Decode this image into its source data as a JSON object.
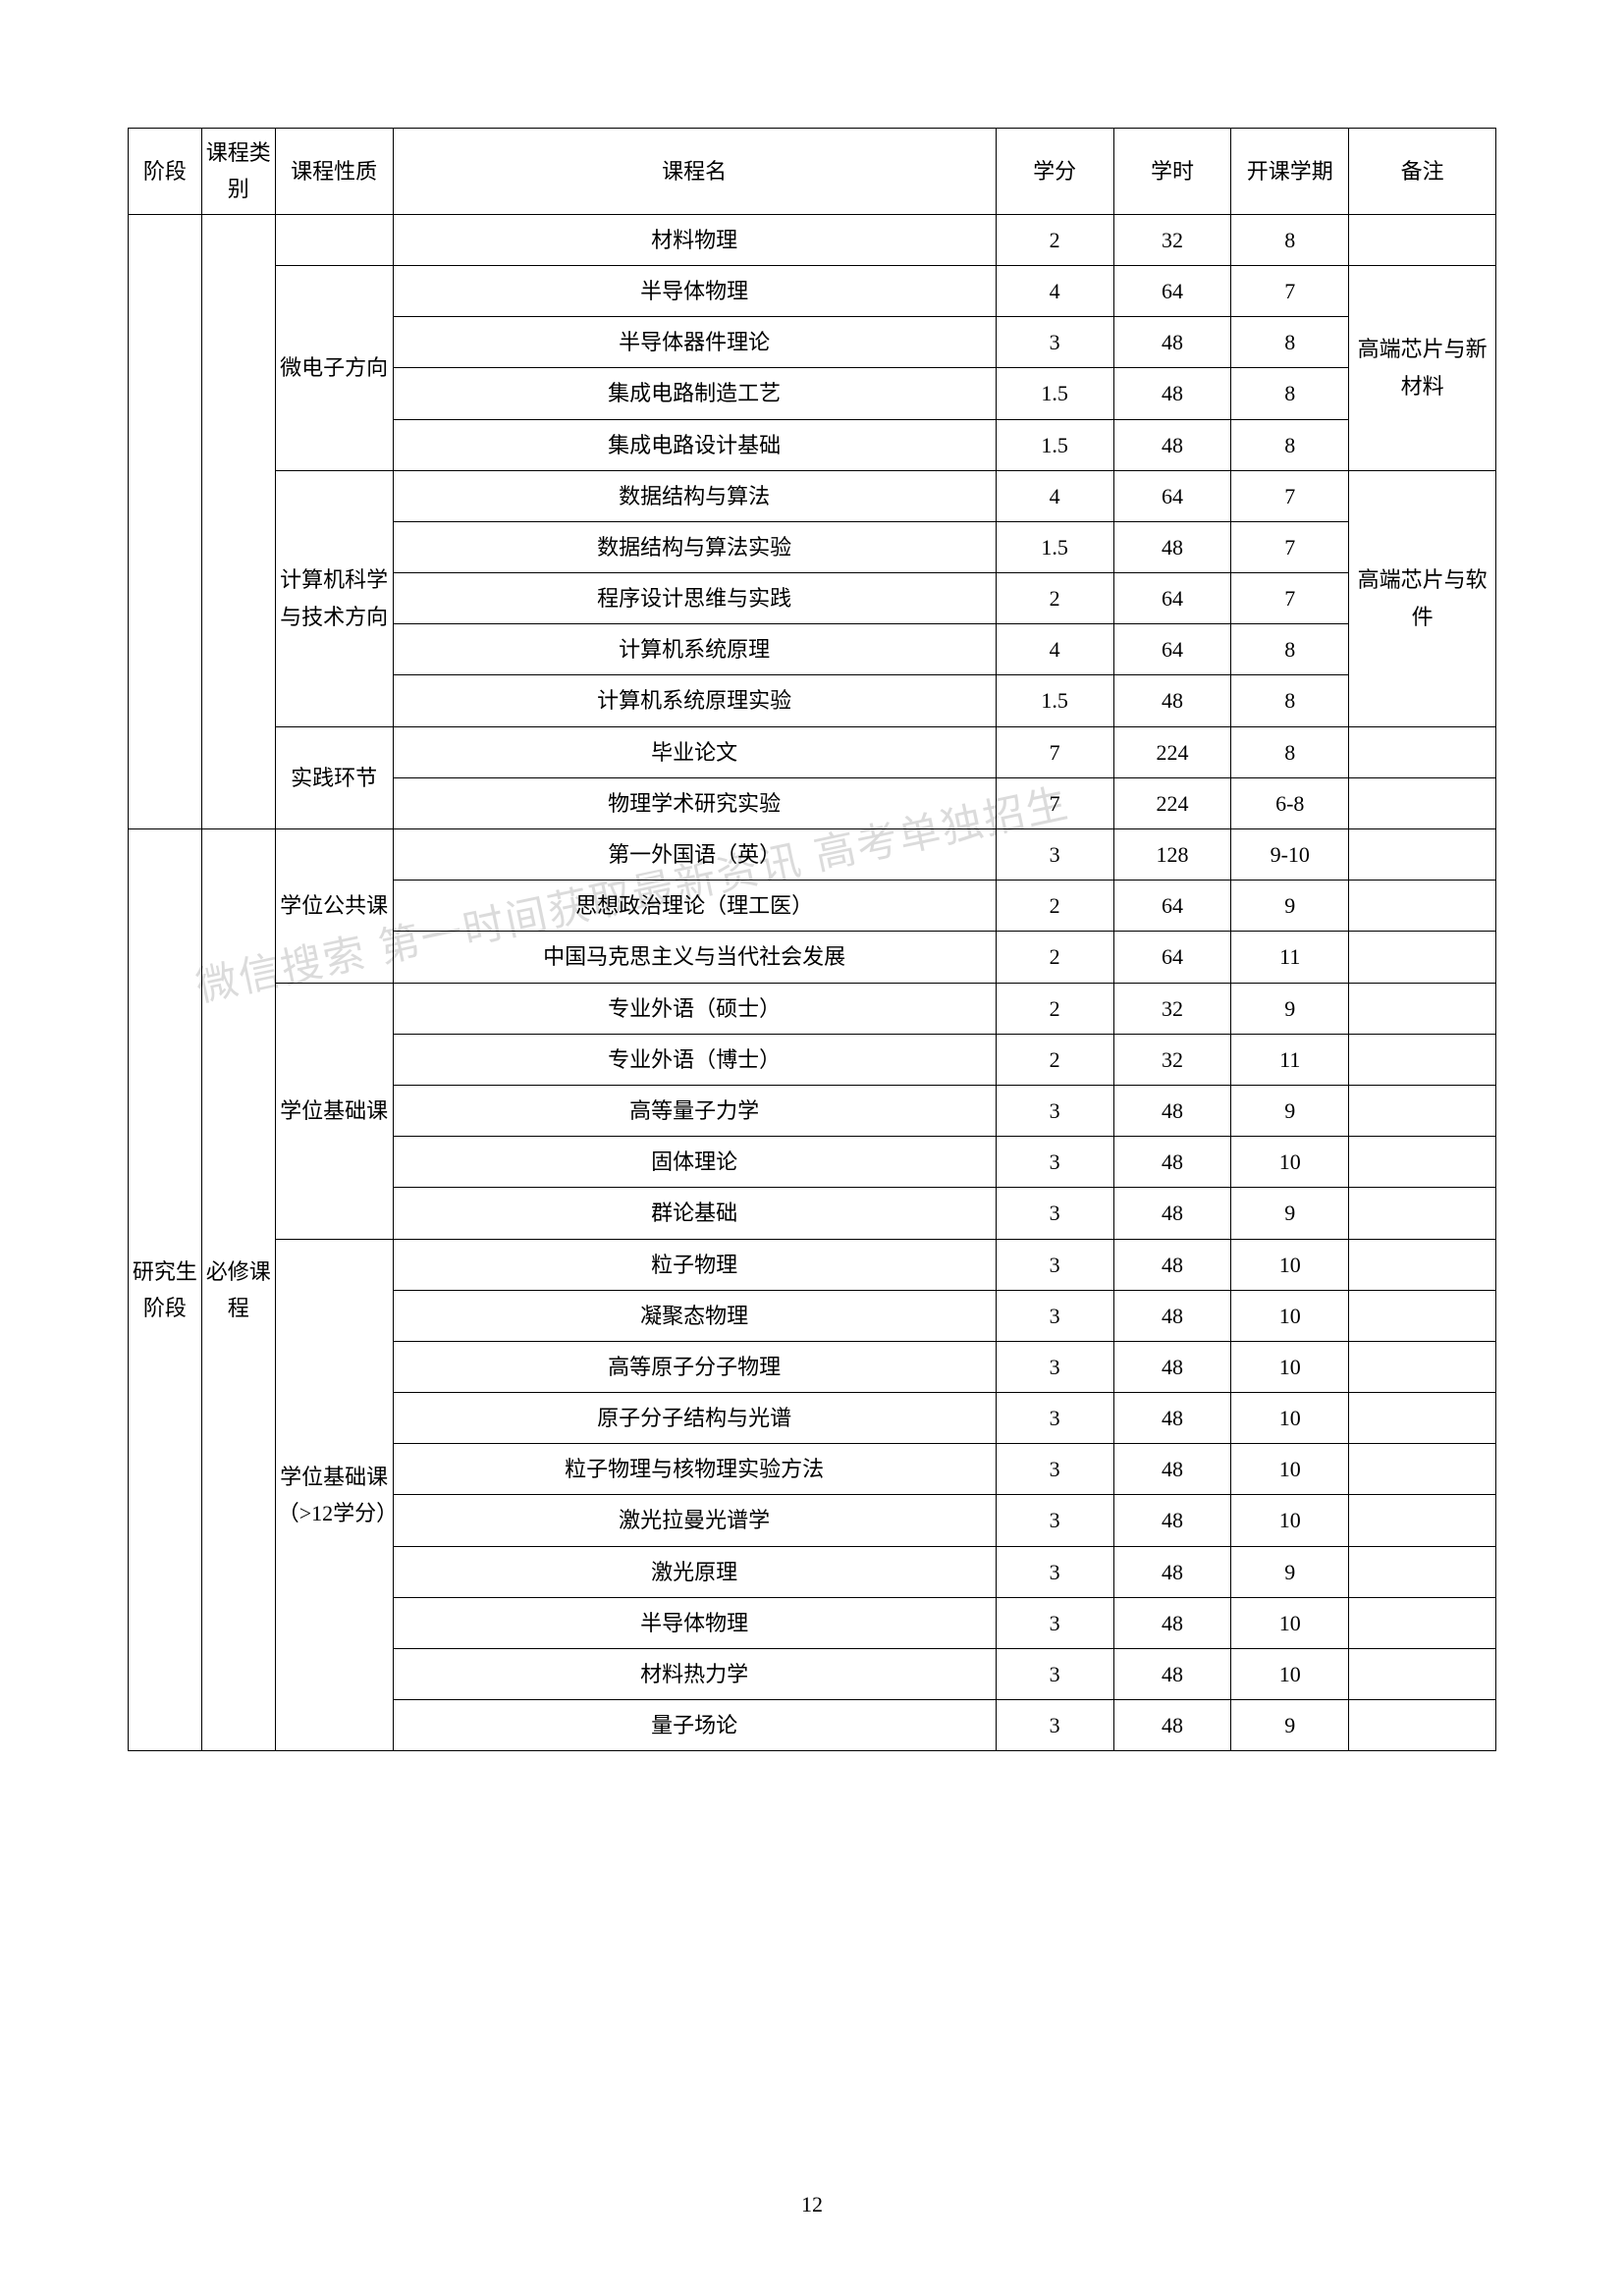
{
  "page_number": "12",
  "watermark": "微信搜索    第一时间获取最新资讯   高考单独招生",
  "table": {
    "border_color": "#000000",
    "background_color": "#ffffff",
    "text_color": "#000000",
    "font_size": 22,
    "columns": [
      {
        "key": "stage",
        "label": "阶段",
        "width_pct": 5
      },
      {
        "key": "category",
        "label": "课程类别",
        "width_pct": 5
      },
      {
        "key": "nature",
        "label": "课程性质",
        "width_pct": 8
      },
      {
        "key": "name",
        "label": "课程名",
        "width_pct": 41
      },
      {
        "key": "credit",
        "label": "学分",
        "width_pct": 8
      },
      {
        "key": "hours",
        "label": "学时",
        "width_pct": 8
      },
      {
        "key": "semester",
        "label": "开课学期",
        "width_pct": 8
      },
      {
        "key": "remark",
        "label": "备注",
        "width_pct": 10
      }
    ],
    "header": {
      "stage": "阶段",
      "category": "课程类别",
      "nature": "课程性质",
      "name": "课程名",
      "credit": "学分",
      "hours": "学时",
      "semester": "开课学期",
      "remark": "备注"
    },
    "groups": {
      "micro": {
        "label": "微电子方向",
        "remark": "高端芯片与新材料"
      },
      "cs": {
        "label": "计算机科学与技术方向",
        "remark": "高端芯片与软件"
      },
      "practice": {
        "label": "实践环节"
      },
      "pub": {
        "label": "学位公共课"
      },
      "basic": {
        "label": "学位基础课"
      },
      "basic12": {
        "label": "学位基础课（>12学分）"
      },
      "grad_stage": {
        "label": "研究生阶段"
      },
      "req": {
        "label": "必修课程"
      }
    },
    "rows": [
      {
        "name": "材料物理",
        "credit": "2",
        "hours": "32",
        "semester": "8",
        "remark": ""
      },
      {
        "name": "半导体物理",
        "credit": "4",
        "hours": "64",
        "semester": "7"
      },
      {
        "name": "半导体器件理论",
        "credit": "3",
        "hours": "48",
        "semester": "8"
      },
      {
        "name": "集成电路制造工艺",
        "credit": "1.5",
        "hours": "48",
        "semester": "8"
      },
      {
        "name": "集成电路设计基础",
        "credit": "1.5",
        "hours": "48",
        "semester": "8"
      },
      {
        "name": "数据结构与算法",
        "credit": "4",
        "hours": "64",
        "semester": "7"
      },
      {
        "name": "数据结构与算法实验",
        "credit": "1.5",
        "hours": "48",
        "semester": "7"
      },
      {
        "name": "程序设计思维与实践",
        "credit": "2",
        "hours": "64",
        "semester": "7"
      },
      {
        "name": "计算机系统原理",
        "credit": "4",
        "hours": "64",
        "semester": "8"
      },
      {
        "name": "计算机系统原理实验",
        "credit": "1.5",
        "hours": "48",
        "semester": "8"
      },
      {
        "name": "毕业论文",
        "credit": "7",
        "hours": "224",
        "semester": "8",
        "remark": ""
      },
      {
        "name": "物理学术研究实验",
        "credit": "7",
        "hours": "224",
        "semester": "6-8",
        "remark": ""
      },
      {
        "name": "第一外国语（英）",
        "credit": "3",
        "hours": "128",
        "semester": "9-10",
        "remark": ""
      },
      {
        "name": "思想政治理论（理工医）",
        "credit": "2",
        "hours": "64",
        "semester": "9",
        "remark": ""
      },
      {
        "name": "中国马克思主义与当代社会发展",
        "credit": "2",
        "hours": "64",
        "semester": "11",
        "remark": ""
      },
      {
        "name": "专业外语（硕士）",
        "credit": "2",
        "hours": "32",
        "semester": "9",
        "remark": ""
      },
      {
        "name": "专业外语（博士）",
        "credit": "2",
        "hours": "32",
        "semester": "11",
        "remark": ""
      },
      {
        "name": "高等量子力学",
        "credit": "3",
        "hours": "48",
        "semester": "9",
        "remark": ""
      },
      {
        "name": "固体理论",
        "credit": "3",
        "hours": "48",
        "semester": "10",
        "remark": ""
      },
      {
        "name": "群论基础",
        "credit": "3",
        "hours": "48",
        "semester": "9",
        "remark": ""
      },
      {
        "name": "粒子物理",
        "credit": "3",
        "hours": "48",
        "semester": "10",
        "remark": ""
      },
      {
        "name": "凝聚态物理",
        "credit": "3",
        "hours": "48",
        "semester": "10",
        "remark": ""
      },
      {
        "name": "高等原子分子物理",
        "credit": "3",
        "hours": "48",
        "semester": "10",
        "remark": ""
      },
      {
        "name": "原子分子结构与光谱",
        "credit": "3",
        "hours": "48",
        "semester": "10",
        "remark": ""
      },
      {
        "name": "粒子物理与核物理实验方法",
        "credit": "3",
        "hours": "48",
        "semester": "10",
        "remark": ""
      },
      {
        "name": "激光拉曼光谱学",
        "credit": "3",
        "hours": "48",
        "semester": "10",
        "remark": ""
      },
      {
        "name": "激光原理",
        "credit": "3",
        "hours": "48",
        "semester": "9",
        "remark": ""
      },
      {
        "name": "半导体物理",
        "credit": "3",
        "hours": "48",
        "semester": "10",
        "remark": ""
      },
      {
        "name": "材料热力学",
        "credit": "3",
        "hours": "48",
        "semester": "10",
        "remark": ""
      },
      {
        "name": "量子场论",
        "credit": "3",
        "hours": "48",
        "semester": "9",
        "remark": ""
      }
    ]
  }
}
